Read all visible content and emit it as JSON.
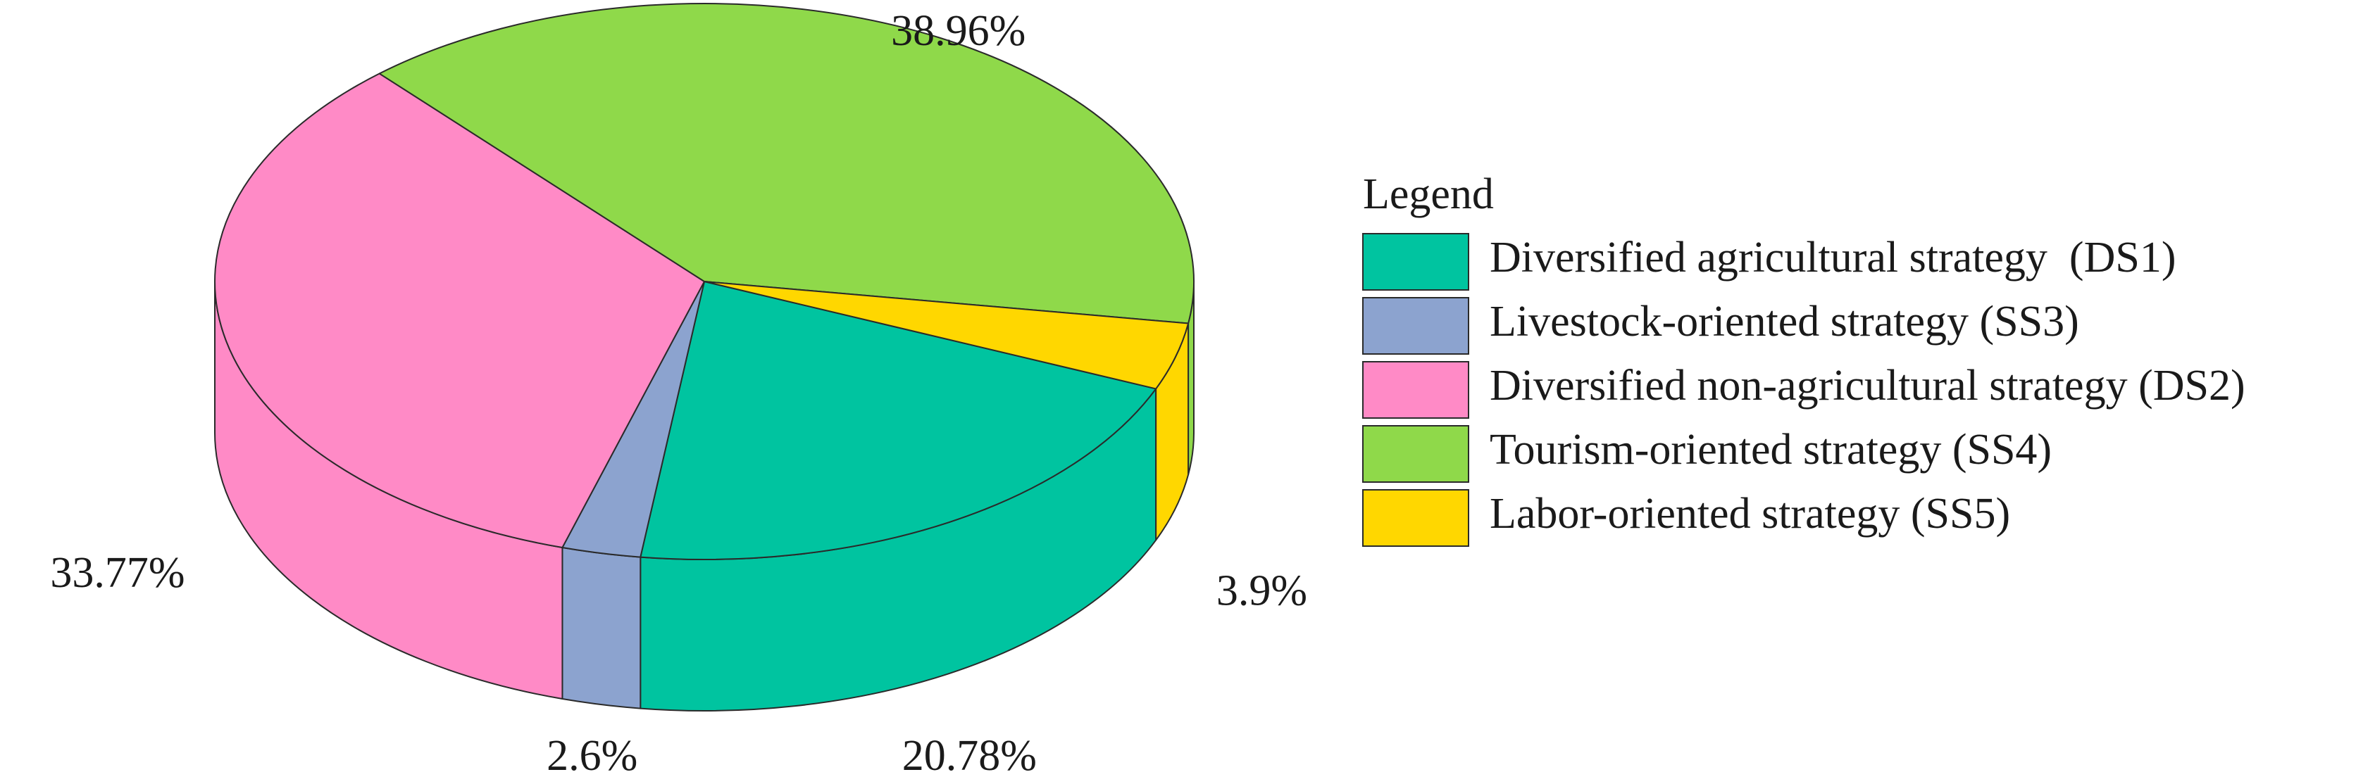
{
  "chart_data": {
    "type": "pie3d",
    "categories": [
      "Diversified agricultural strategy  (DS1)",
      "Livestock-oriented strategy (SS3)",
      "Diversified non-agricultural strategy (DS2)",
      "Tourism-oriented strategy (SS4)",
      "Labor-oriented strategy (SS5)"
    ],
    "values": [
      20.78,
      2.6,
      33.77,
      38.96,
      3.9
    ],
    "value_labels": [
      "20.78%",
      "2.6%",
      "33.77%",
      "38.96%",
      "3.9%"
    ],
    "colors": [
      "#00c4a0",
      "#8ca3cf",
      "#ff8ac6",
      "#8fd94a",
      "#ffd700"
    ],
    "legend_title": "Legend",
    "legend": "right"
  }
}
